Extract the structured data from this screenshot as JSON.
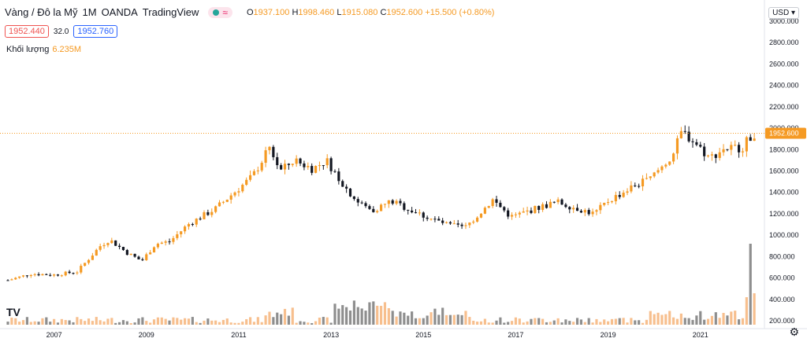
{
  "header": {
    "symbol": "Vàng / Đô la Mỹ",
    "interval": "1M",
    "exchange": "OANDA",
    "source": "TradingView",
    "status_icon": "market-status-dot",
    "pill_icon": "wave-icon",
    "ohlc": {
      "o_key": "O",
      "o": "1937.100",
      "h_key": "H",
      "h": "1998.460",
      "l_key": "L",
      "l": "1915.080",
      "c_key": "C",
      "c": "1952.600",
      "change": "+15.500 (+0.80%)"
    },
    "bid": "1952.440",
    "spread": "32.0",
    "ask": "1952.760",
    "volume_label": "Khối lượng",
    "volume_value": "6.235M",
    "currency": "USD",
    "settings_icon": "gear-icon",
    "logo_icon": "tradingview-logo-icon"
  },
  "colors": {
    "up": "#f59a23",
    "down": "#131722",
    "vol_up": "#f7bf8e",
    "vol_down": "#8e8e8e",
    "price_line": "#f59a23"
  },
  "chart_data": {
    "type": "candlestick",
    "interval": "monthly",
    "price_axis": {
      "ticks": [
        "200.000",
        "400.000",
        "600.000",
        "800.000",
        "1000.000",
        "1200.000",
        "1400.000",
        "1600.000",
        "1800.000",
        "2000.000",
        "2200.000",
        "2400.000",
        "2600.000",
        "2800.000",
        "3000.000"
      ],
      "ylim": [
        150,
        3050
      ]
    },
    "time_axis": {
      "ticks": [
        "2007",
        "2009",
        "2011",
        "2013",
        "2015",
        "2017",
        "2019",
        "2021"
      ]
    },
    "last_price": "1952.600",
    "series": [
      {
        "name": "price",
        "close_path": [
          [
            2006.0,
            580
          ],
          [
            2006.5,
            640
          ],
          [
            2007.0,
            630
          ],
          [
            2007.5,
            660
          ],
          [
            2008.0,
            900
          ],
          [
            2008.2,
            960
          ],
          [
            2008.6,
            830
          ],
          [
            2008.9,
            760
          ],
          [
            2009.2,
            920
          ],
          [
            2009.5,
            940
          ],
          [
            2009.9,
            1100
          ],
          [
            2010.5,
            1250
          ],
          [
            2010.9,
            1400
          ],
          [
            2011.3,
            1550
          ],
          [
            2011.67,
            1820
          ],
          [
            2011.9,
            1600
          ],
          [
            2012.2,
            1700
          ],
          [
            2012.6,
            1620
          ],
          [
            2012.9,
            1700
          ],
          [
            2013.3,
            1450
          ],
          [
            2013.6,
            1300
          ],
          [
            2013.9,
            1230
          ],
          [
            2014.3,
            1320
          ],
          [
            2014.9,
            1200
          ],
          [
            2015.5,
            1100
          ],
          [
            2015.9,
            1070
          ],
          [
            2016.5,
            1330
          ],
          [
            2016.9,
            1170
          ],
          [
            2017.5,
            1260
          ],
          [
            2017.9,
            1310
          ],
          [
            2018.7,
            1200
          ],
          [
            2019.0,
            1320
          ],
          [
            2019.6,
            1470
          ],
          [
            2019.9,
            1520
          ],
          [
            2020.4,
            1750
          ],
          [
            2020.6,
            1970
          ],
          [
            2020.9,
            1860
          ],
          [
            2021.2,
            1720
          ],
          [
            2021.5,
            1810
          ],
          [
            2021.9,
            1820
          ],
          [
            2022.15,
            1950
          ]
        ]
      }
    ],
    "volume": {
      "peak_label": "volume spike",
      "notes": "volume bars along bottom, spike near 2022"
    }
  }
}
